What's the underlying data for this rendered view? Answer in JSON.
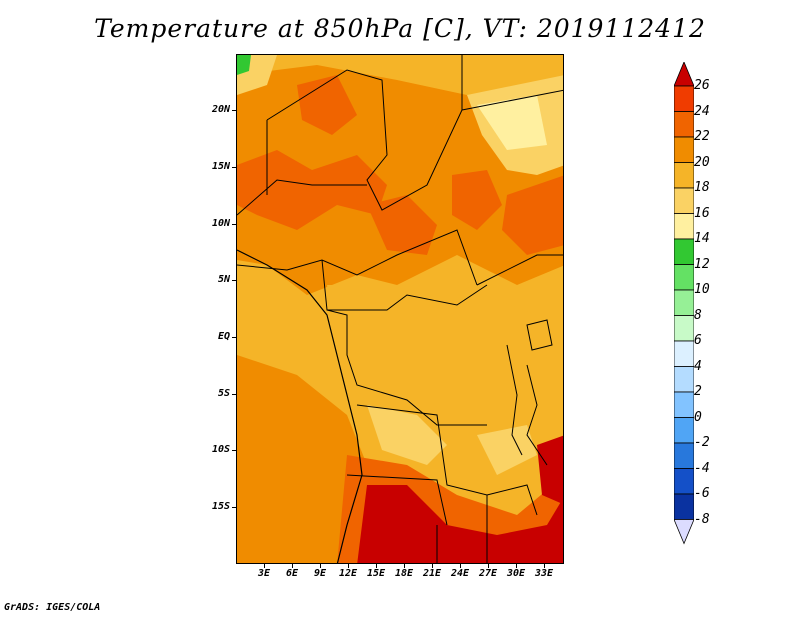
{
  "title": "Temperature at 850hPa [C], VT: 2019112412",
  "map": {
    "lat_labels": [
      "20N",
      "15N",
      "10N",
      "5N",
      "EQ",
      "5S",
      "10S",
      "15S"
    ],
    "lon_labels": [
      "3E",
      "6E",
      "9E",
      "12E",
      "15E",
      "18E",
      "21E",
      "24E",
      "27E",
      "30E",
      "33E"
    ],
    "lat_range": [
      -18,
      24
    ],
    "lon_range": [
      0,
      35
    ]
  },
  "colorbar": {
    "labels": [
      "26",
      "24",
      "22",
      "20",
      "18",
      "16",
      "14",
      "12",
      "10",
      "8",
      "6",
      "4",
      "2",
      "0",
      "-2",
      "-4",
      "-6",
      "-8"
    ],
    "colors": [
      "#c80000",
      "#f03c00",
      "#f06400",
      "#f08c00",
      "#f5b428",
      "#fad264",
      "#fff0a0",
      "#32c832",
      "#64e164",
      "#96f096",
      "#c8fac8",
      "#dcf0ff",
      "#b4dcff",
      "#82c3ff",
      "#50a5f5",
      "#2878dc",
      "#1450c8",
      "#0a32a0",
      "#000a64"
    ]
  },
  "credit": "GrADS: IGES/COLA"
}
